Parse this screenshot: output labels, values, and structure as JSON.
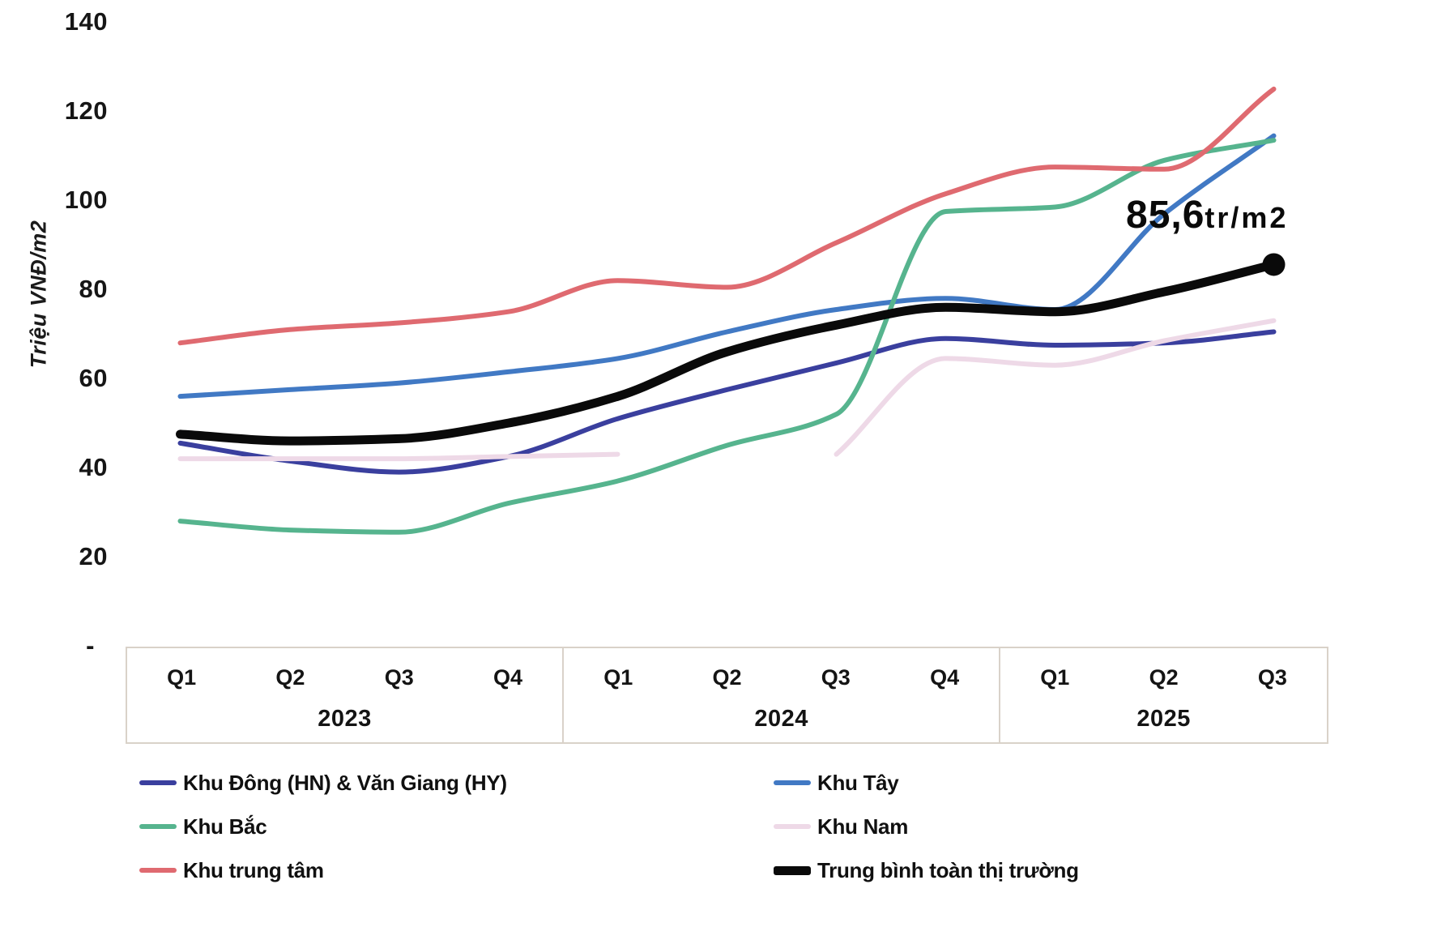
{
  "chart_data": {
    "type": "line",
    "y_axis": {
      "title": "Triệu VNĐ/m2",
      "ticks": [
        {
          "label": "140",
          "value": 140
        },
        {
          "label": "120",
          "value": 120
        },
        {
          "label": "100",
          "value": 100
        },
        {
          "label": "80",
          "value": 80
        },
        {
          "label": "60",
          "value": 60
        },
        {
          "label": "40",
          "value": 40
        },
        {
          "label": "20",
          "value": 20
        },
        {
          "label": "-",
          "value": 0
        }
      ],
      "ylim": [
        0,
        140
      ],
      "grid": "off"
    },
    "x_axis": {
      "years": [
        {
          "label": "2023",
          "quarters": [
            "Q1",
            "Q2",
            "Q3",
            "Q4"
          ]
        },
        {
          "label": "2024",
          "quarters": [
            "Q1",
            "Q2",
            "Q3",
            "Q4"
          ]
        },
        {
          "label": "2025",
          "quarters": [
            "Q1",
            "Q2",
            "Q3"
          ]
        }
      ]
    },
    "series": [
      {
        "id": "khu-dong",
        "name": "Khu Đông (HN) & Văn Giang (HY)",
        "color": "#3a3f9e",
        "width": 6,
        "values": [
          45.5,
          41.5,
          39,
          42.5,
          51,
          57.5,
          63.5,
          69,
          67.5,
          68,
          70.5
        ]
      },
      {
        "id": "khu-tay",
        "name": "Khu Tây",
        "color": "#4179c4",
        "width": 6,
        "values": [
          56,
          57.5,
          59,
          61.5,
          64.5,
          70.5,
          75.5,
          78,
          75.5,
          97,
          114.5
        ]
      },
      {
        "id": "khu-bac",
        "name": "Khu Bắc",
        "color": "#56b48e",
        "width": 6,
        "values": [
          28,
          26,
          25.5,
          32,
          37,
          45,
          52,
          97.5,
          98.5,
          109,
          113.5
        ]
      },
      {
        "id": "khu-nam",
        "name": "Khu Nam",
        "color": "#eed9e7",
        "width": 6,
        "values": [
          42,
          42,
          42,
          42.5,
          43,
          null,
          43,
          64.5,
          63,
          68.5,
          73
        ]
      },
      {
        "id": "khu-trung-tam",
        "name": "Khu trung tâm",
        "color": "#df6a70",
        "width": 6,
        "values": [
          68,
          71,
          72.5,
          75,
          82,
          80.5,
          90.5,
          101.5,
          107.5,
          107,
          125
        ]
      },
      {
        "id": "trung-binh",
        "name": "Trung bình toàn thị trường",
        "color": "#0a0a0a",
        "width": 11,
        "end_dot": true,
        "values": [
          47.5,
          46,
          46.5,
          50,
          56,
          66,
          72,
          76,
          75,
          79.5,
          85.6
        ]
      }
    ],
    "annotation": {
      "value": "85,6",
      "unit": "tr/m2"
    },
    "legend_position": "bottom"
  },
  "legend": {
    "columns": [
      [
        0,
        2,
        4
      ],
      [
        1,
        3,
        5
      ]
    ]
  }
}
